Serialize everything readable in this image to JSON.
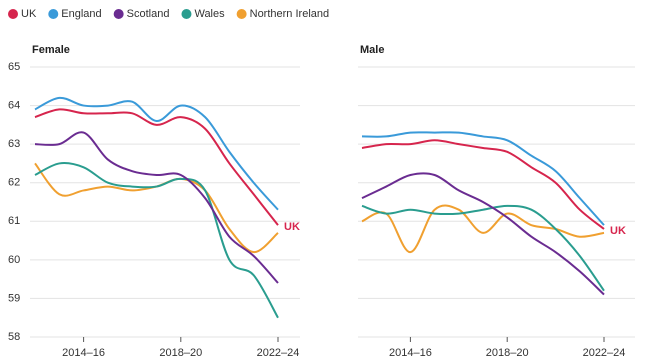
{
  "legend": [
    {
      "name": "UK",
      "color": "#d6254d"
    },
    {
      "name": "England",
      "color": "#3a9ad9"
    },
    {
      "name": "Scotland",
      "color": "#6a2c91"
    },
    {
      "name": "Wales",
      "color": "#2a9d8f"
    },
    {
      "name": "Northern Ireland",
      "color": "#f0a030"
    }
  ],
  "chart_data": [
    {
      "type": "line",
      "title": "Female",
      "categories": [
        null,
        null,
        "2014–16",
        null,
        null,
        null,
        "2018–20",
        null,
        null,
        null,
        "2022–24"
      ],
      "ylim": [
        58,
        65
      ],
      "yticks": [
        58,
        59,
        60,
        61,
        62,
        63,
        64,
        65
      ],
      "ytick_labels": true,
      "grid": true,
      "series": [
        {
          "values": [
            63.7,
            63.9,
            63.8,
            63.8,
            63.8,
            63.5,
            63.7,
            63.4,
            62.5,
            61.7,
            60.9
          ]
        },
        {
          "values": [
            63.9,
            64.2,
            64.0,
            64.0,
            64.1,
            63.6,
            64.0,
            63.7,
            62.8,
            62.0,
            61.3
          ]
        },
        {
          "values": [
            63.0,
            63.0,
            63.3,
            62.6,
            62.3,
            62.2,
            62.2,
            61.6,
            60.6,
            60.1,
            59.4
          ]
        },
        {
          "values": [
            62.2,
            62.5,
            62.4,
            62.0,
            61.9,
            61.9,
            62.1,
            61.8,
            60.0,
            59.6,
            58.5
          ]
        },
        {
          "values": [
            62.5,
            61.7,
            61.8,
            61.9,
            61.8,
            61.9,
            62.1,
            61.8,
            60.8,
            60.2,
            60.7
          ]
        }
      ],
      "annotation": "UK"
    },
    {
      "type": "line",
      "title": "Male",
      "categories": [
        null,
        null,
        "2014–16",
        null,
        null,
        null,
        "2018–20",
        null,
        null,
        null,
        "2022–24"
      ],
      "ylim": [
        58,
        65
      ],
      "yticks": [
        58,
        59,
        60,
        61,
        62,
        63,
        64,
        65
      ],
      "ytick_labels": false,
      "grid": true,
      "series": [
        {
          "values": [
            62.9,
            63.0,
            63.0,
            63.1,
            63.0,
            62.9,
            62.8,
            62.4,
            62.0,
            61.3,
            60.8
          ]
        },
        {
          "values": [
            63.2,
            63.2,
            63.3,
            63.3,
            63.3,
            63.2,
            63.1,
            62.7,
            62.3,
            61.6,
            60.9
          ]
        },
        {
          "values": [
            61.6,
            61.9,
            62.2,
            62.2,
            61.8,
            61.5,
            61.1,
            60.6,
            60.2,
            59.7,
            59.1
          ]
        },
        {
          "values": [
            61.4,
            61.2,
            61.3,
            61.2,
            61.2,
            61.3,
            61.4,
            61.3,
            60.8,
            60.1,
            59.2
          ]
        },
        {
          "values": [
            61.0,
            61.2,
            60.2,
            61.3,
            61.3,
            60.7,
            61.2,
            60.9,
            60.8,
            60.6,
            60.7
          ]
        }
      ],
      "annotation": "UK"
    }
  ]
}
